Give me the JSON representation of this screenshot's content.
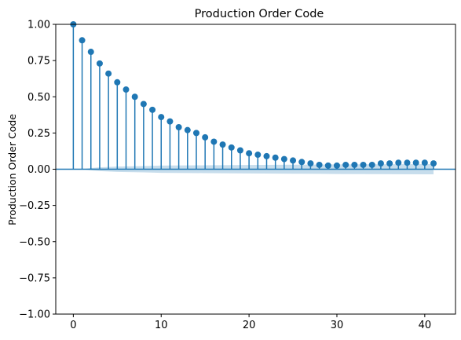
{
  "chart_data": {
    "type": "scatter",
    "title": "Production Order Code",
    "xlabel": "",
    "ylabel": "Production Order Code",
    "xlim": [
      -2,
      43.5
    ],
    "ylim": [
      -1.0,
      1.0
    ],
    "x_ticks": [
      0,
      10,
      20,
      30,
      40
    ],
    "y_ticks": [
      -1.0,
      -0.75,
      -0.5,
      -0.25,
      0.0,
      0.25,
      0.5,
      0.75,
      1.0
    ],
    "x_tick_labels": [
      "0",
      "10",
      "20",
      "30",
      "40"
    ],
    "y_tick_labels": [
      "−1.00",
      "−0.75",
      "−0.50",
      "−0.25",
      "0.00",
      "0.25",
      "0.50",
      "0.75",
      "1.00"
    ],
    "grid": false,
    "zero_line": 0.0,
    "marker_color": "#1f77b4",
    "band_color": "#1f77b4",
    "series": [
      {
        "x": [
          0,
          1,
          2,
          3,
          4,
          5,
          6,
          7,
          8,
          9,
          10,
          11,
          12,
          13,
          14,
          15,
          16,
          17,
          18,
          19,
          20,
          21,
          22,
          23,
          24,
          25,
          26,
          27,
          28,
          29,
          30,
          31,
          32,
          33,
          34,
          35,
          36,
          37,
          38,
          39,
          40,
          41
        ],
        "values": [
          1.0,
          0.89,
          0.81,
          0.73,
          0.66,
          0.6,
          0.55,
          0.5,
          0.45,
          0.41,
          0.36,
          0.33,
          0.29,
          0.27,
          0.25,
          0.22,
          0.19,
          0.17,
          0.15,
          0.13,
          0.11,
          0.1,
          0.09,
          0.08,
          0.07,
          0.06,
          0.05,
          0.04,
          0.03,
          0.025,
          0.025,
          0.03,
          0.03,
          0.03,
          0.03,
          0.04,
          0.04,
          0.045,
          0.045,
          0.045,
          0.045,
          0.04
        ]
      }
    ],
    "confidence_band": {
      "x": [
        1,
        2,
        3,
        5,
        8,
        10,
        15,
        20,
        25,
        28,
        30,
        35,
        41
      ],
      "upper": [
        0.0,
        0.008,
        0.013,
        0.018,
        0.022,
        0.025,
        0.027,
        0.029,
        0.031,
        0.032,
        0.033,
        0.034,
        0.035
      ],
      "lower": [
        0.0,
        -0.008,
        -0.013,
        -0.018,
        -0.022,
        -0.025,
        -0.027,
        -0.029,
        -0.031,
        -0.032,
        -0.033,
        -0.034,
        -0.035
      ]
    }
  }
}
